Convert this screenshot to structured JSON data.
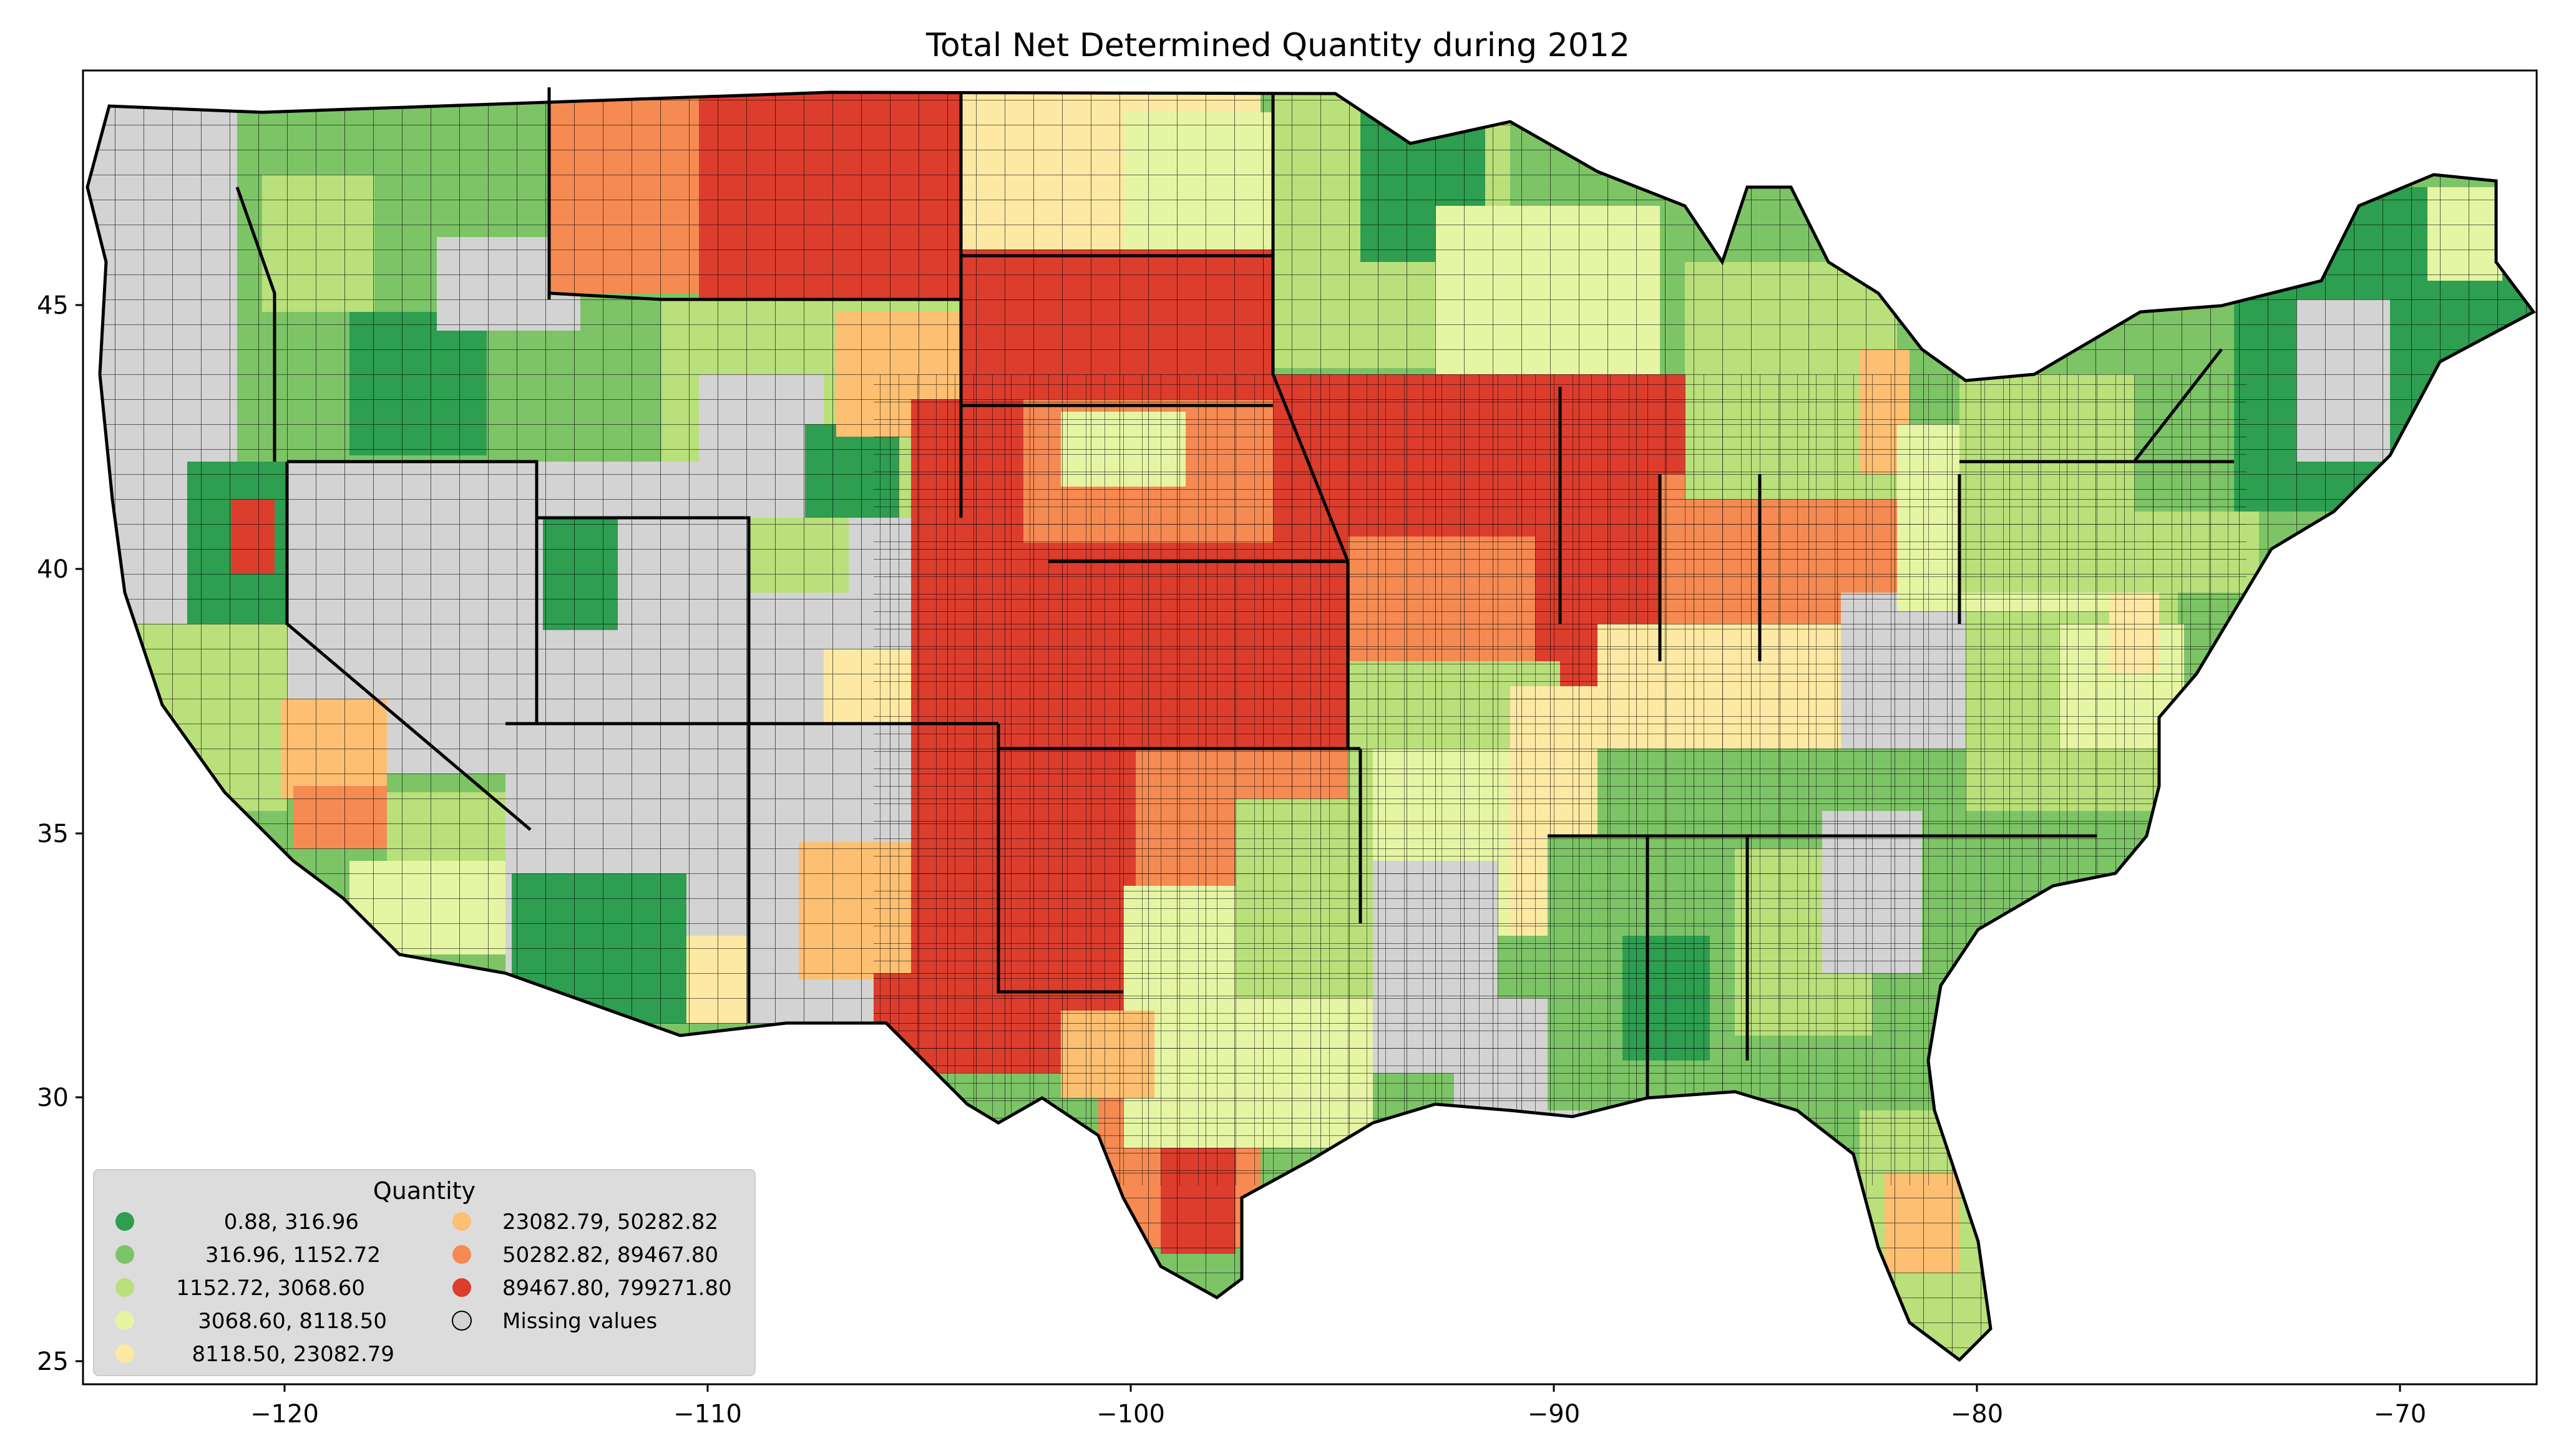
{
  "title": "Total Net Determined Quantity during 2012",
  "axes": {
    "x_ticks": [
      "−120",
      "−110",
      "−100",
      "−90",
      "−80",
      "−70"
    ],
    "y_ticks": [
      "25",
      "30",
      "35",
      "40",
      "45"
    ],
    "x_range": [
      -124.8,
      -66.8
    ],
    "y_range": [
      24.6,
      49.4
    ]
  },
  "legend": {
    "title": "Quantity",
    "items": [
      {
        "label": "0.88,    316.96",
        "color": "#2e9e50"
      },
      {
        "label": "316.96,   1152.72",
        "color": "#7cc466"
      },
      {
        "label": "1152.72,   3068.60",
        "color": "#b9e07a"
      },
      {
        "label": "3068.60,   8118.50",
        "color": "#e6f5a4"
      },
      {
        "label": "8118.50,  23082.79",
        "color": "#fde9a3"
      },
      {
        "label": "23082.79,  50282.82",
        "color": "#fdbf71"
      },
      {
        "label": "50282.82,  89467.80",
        "color": "#f58a52"
      },
      {
        "label": "89467.80, 799271.80",
        "color": "#dc3d2d"
      },
      {
        "label": "Missing values",
        "color": "#d3d3d3"
      }
    ]
  },
  "colors": {
    "missing": "#d3d3d3",
    "border": "#000000",
    "legend_bg": "#d9d9d9"
  }
}
